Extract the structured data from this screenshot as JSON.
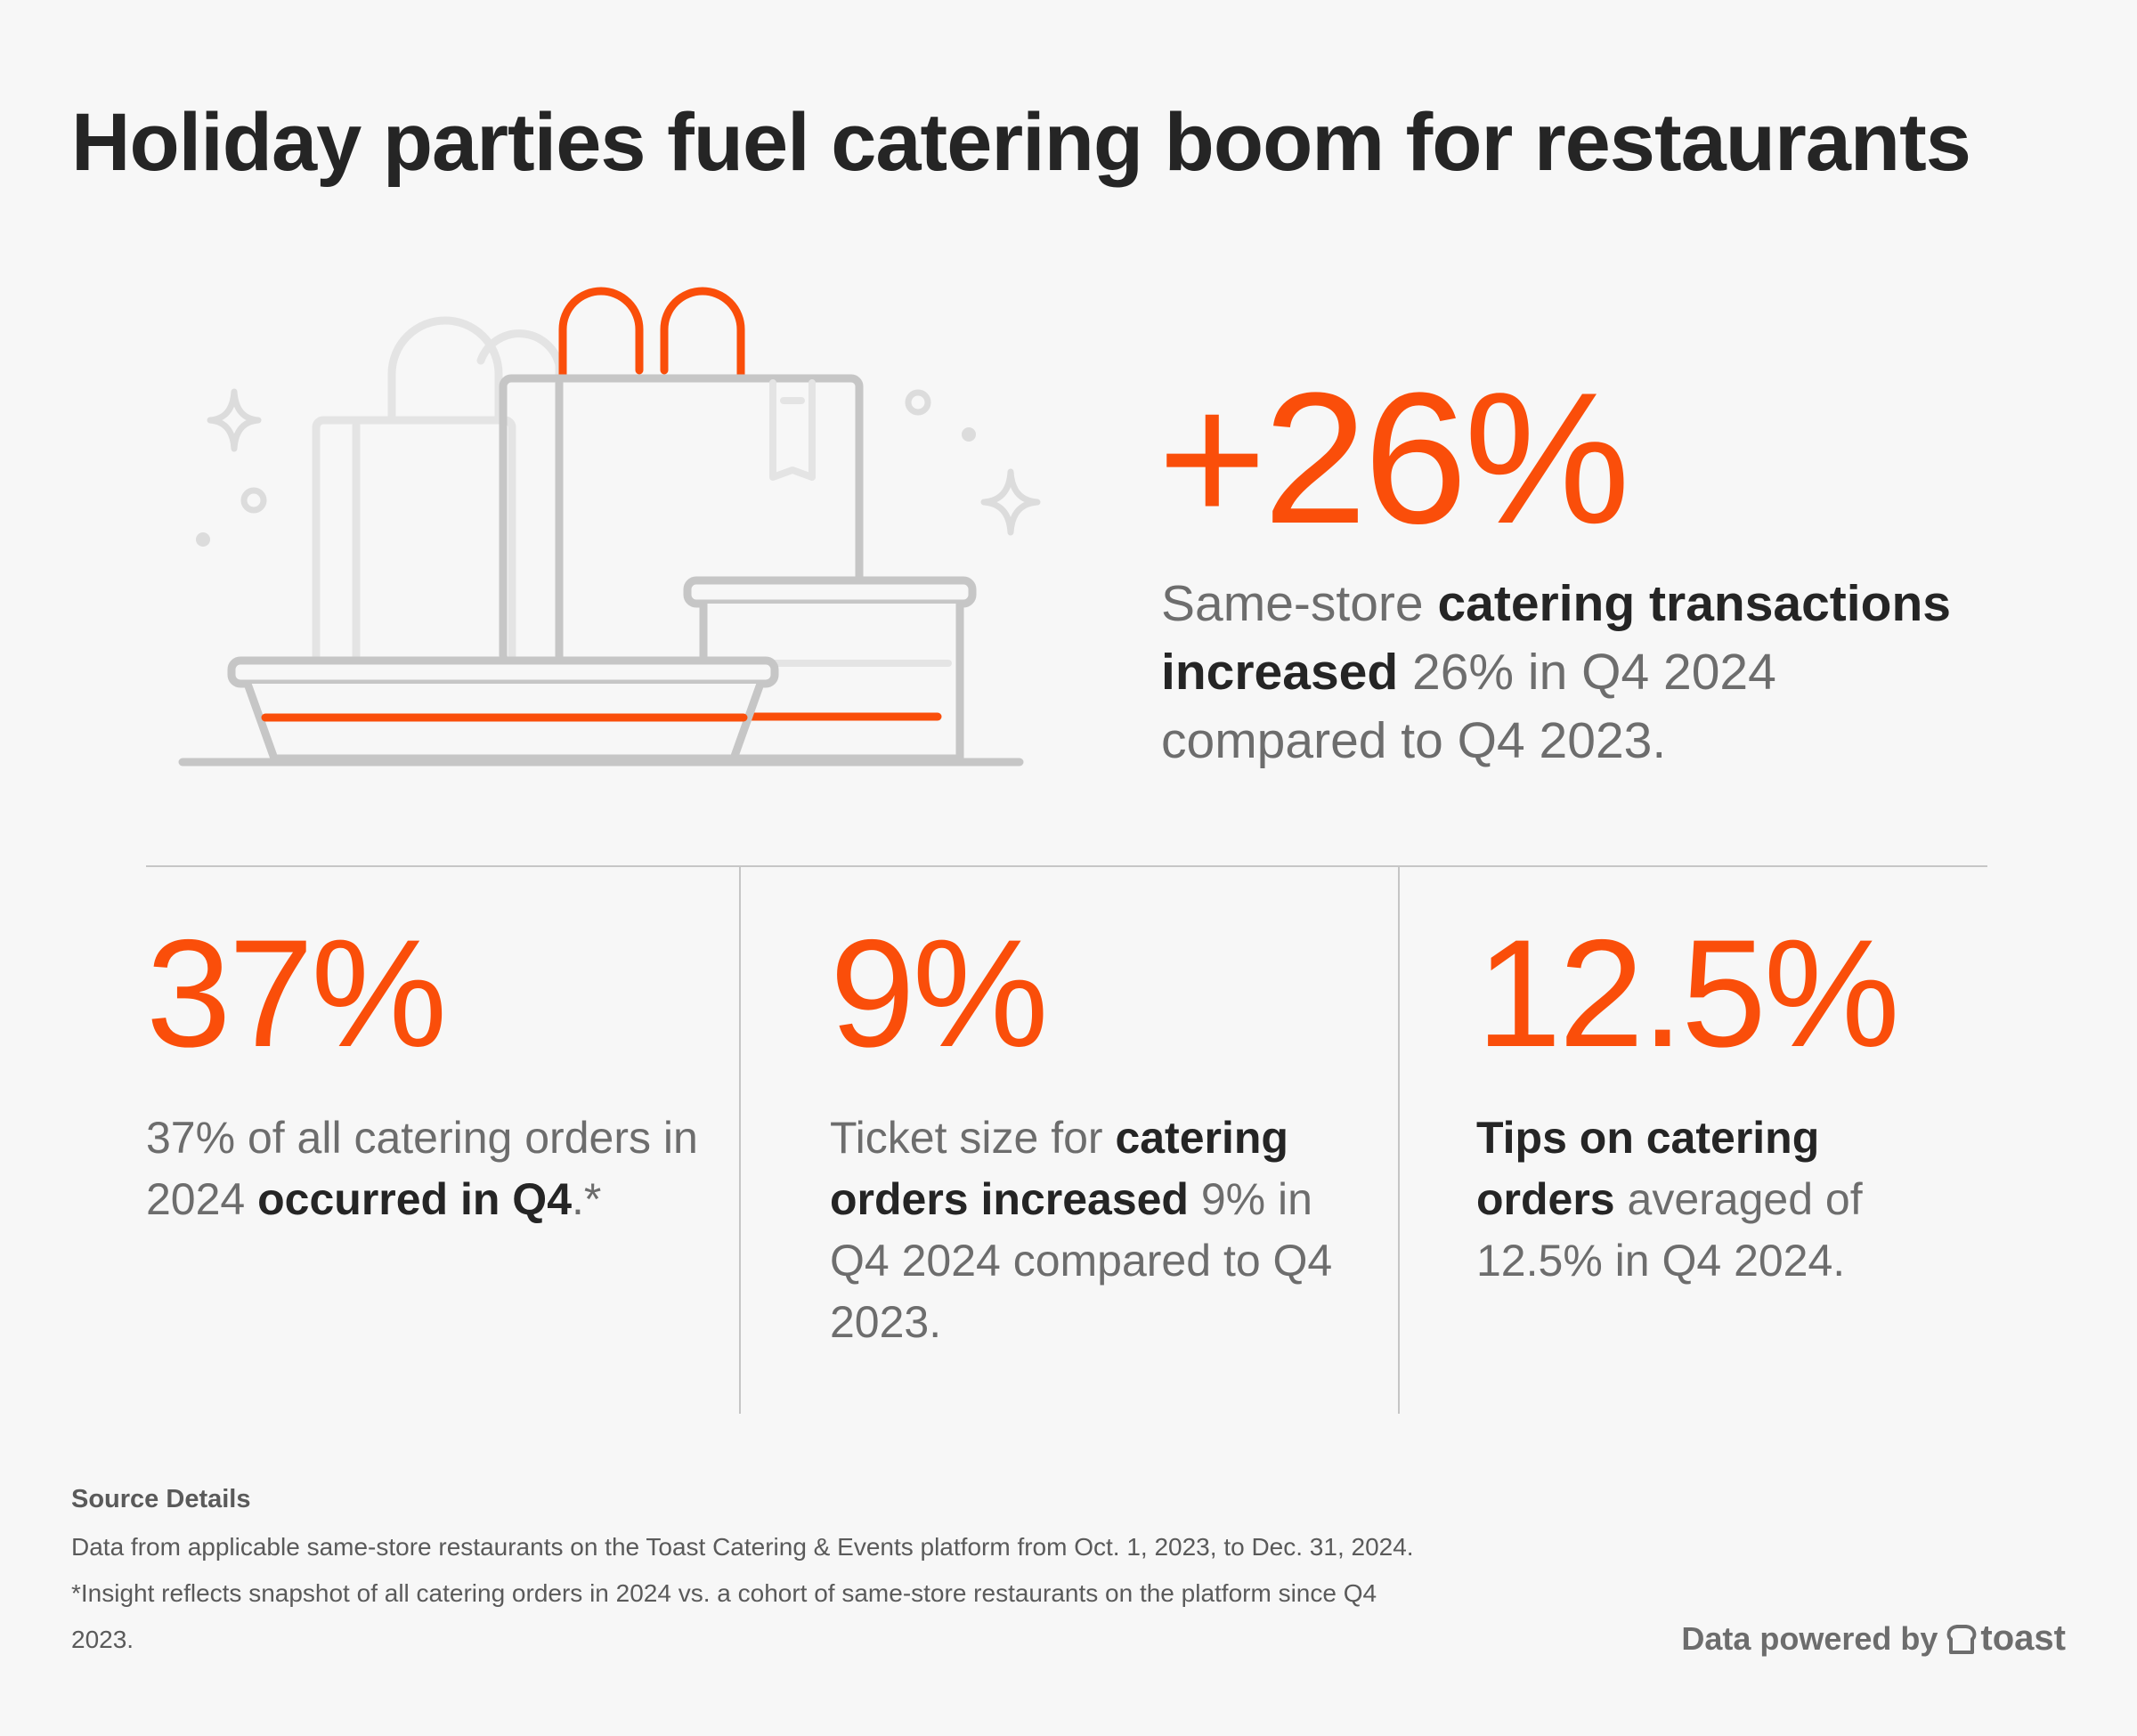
{
  "title": "Holiday parties fuel catering boom for restaurants",
  "colors": {
    "accent": "#fa4e0a",
    "text_dark": "#252525",
    "text_gray": "#6d6d6d",
    "background": "#f7f7f7"
  },
  "illustration": {
    "icon": "catering-bags-and-trays-illustration"
  },
  "hero": {
    "stat": "+26%",
    "desc_pre": "Same-store ",
    "desc_bold": "catering transactions increased",
    "desc_post": " 26% in Q4 2024 compared to Q4 2023."
  },
  "stats": [
    {
      "value": "37%",
      "pre": "37% of all catering orders in 2024 ",
      "bold": "occurred in Q4",
      "post": ".*"
    },
    {
      "value": "9%",
      "pre": "Ticket size for ",
      "bold": "catering orders increased",
      "post": " 9% in Q4 2024 compared to Q4 2023."
    },
    {
      "value": "12.5%",
      "pre": "",
      "bold": "Tips on catering orders",
      "post": " averaged of 12.5% in Q4 2024."
    }
  ],
  "source": {
    "heading": "Source Details",
    "text": "Data from applicable same-store restaurants on the Toast Catering & Events platform from Oct. 1, 2023, to Dec. 31, 2024. *Insight reflects snapshot of all catering orders in 2024 vs. a cohort of same-store restaurants on the platform since Q4 2023."
  },
  "footer": {
    "powered_by": "Data powered by",
    "brand": "toast",
    "brand_icon": "toast-logo-icon"
  }
}
